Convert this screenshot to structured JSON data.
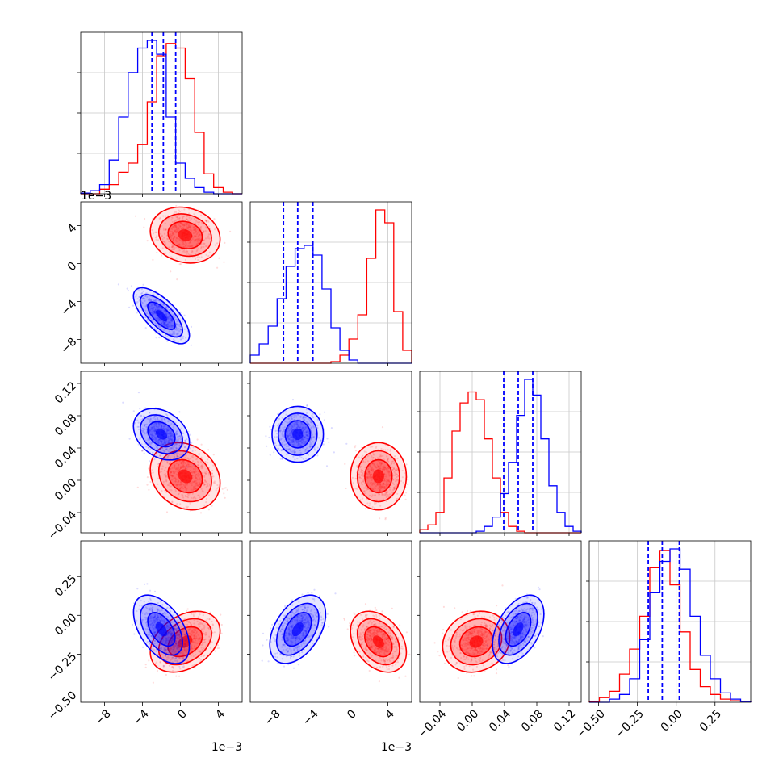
{
  "chart_data": {
    "type": "corner",
    "grid": true,
    "colors": {
      "red": "#ff0000",
      "blue": "#0000ff"
    },
    "variables": [
      {
        "range": [
          -0.0105,
          0.0065
        ],
        "ticks": [
          -0.008,
          -0.004,
          0.0,
          0.004
        ],
        "tick_labels": [
          "−8",
          "−4",
          "0",
          "4"
        ],
        "offset_label": "1e−3"
      },
      {
        "range": [
          -0.0105,
          0.0065
        ],
        "ticks": [
          -0.008,
          -0.004,
          0.0,
          0.004
        ],
        "tick_labels": [
          "−8",
          "−4",
          "0",
          "4"
        ],
        "offset_label": "1e−3"
      },
      {
        "range": [
          -0.065,
          0.135
        ],
        "ticks": [
          -0.04,
          0.0,
          0.04,
          0.08,
          0.12
        ],
        "tick_labels": [
          "−0.04",
          "0.00",
          "0.04",
          "0.08",
          "0.12"
        ],
        "offset_label": ""
      },
      {
        "range": [
          -0.56,
          0.48
        ],
        "ticks": [
          -0.5,
          -0.25,
          0.0,
          0.25
        ],
        "tick_labels": [
          "−0.50",
          "−0.25",
          "0.00",
          "0.25"
        ],
        "offset_label": ""
      }
    ],
    "series": [
      {
        "color": "red",
        "mean": [
          0.0005,
          0.003,
          0.005,
          -0.17
        ],
        "std": [
          0.0015,
          0.0012,
          0.017,
          0.08
        ],
        "corr": [
          [
            0,
            1,
            -0.15
          ],
          [
            0,
            2,
            -0.2
          ],
          [
            0,
            3,
            0.35
          ],
          [
            1,
            3,
            -0.35
          ],
          [
            2,
            3,
            0.15
          ]
        ]
      },
      {
        "color": "blue",
        "mean": [
          -0.002,
          -0.0055,
          0.057,
          -0.09
        ],
        "std": [
          0.0012,
          0.0012,
          0.013,
          0.09
        ],
        "corr": [
          [
            0,
            1,
            -0.7
          ],
          [
            0,
            2,
            -0.3
          ],
          [
            0,
            3,
            -0.5
          ],
          [
            1,
            3,
            0.45
          ],
          [
            2,
            3,
            0.45
          ]
        ]
      }
    ],
    "quantile_lines": {
      "color": "blue",
      "values": [
        [
          -0.003,
          -0.0018,
          -0.0005
        ],
        [
          -0.007,
          -0.0055,
          -0.0039
        ],
        [
          0.039,
          0.057,
          0.075
        ],
        [
          -0.18,
          -0.09,
          0.02
        ]
      ]
    },
    "diagonal_hist": [
      {
        "bins": [
          -0.0105,
          0.0065
        ],
        "red": [
          0,
          0,
          0.3,
          0.6,
          1.4,
          2.0,
          3.2,
          6.0,
          9.0,
          9.8,
          9.5,
          7.5,
          4.0,
          1.3,
          0.4,
          0.1,
          0
        ],
        "blue": [
          0.05,
          0.2,
          0.6,
          2.2,
          5.0,
          7.9,
          9.5,
          10.0,
          9.1,
          5.0,
          2.0,
          1.0,
          0.4,
          0.1,
          0,
          0,
          0
        ]
      },
      {
        "bins": [
          -0.0105,
          0.0065
        ],
        "red": [
          0,
          0,
          0,
          0,
          0,
          0,
          0,
          0,
          0,
          0.1,
          0.5,
          1.5,
          3.0,
          6.5,
          9.5,
          8.7,
          3.2,
          0.8
        ],
        "blue": [
          0.5,
          1.2,
          2.3,
          4.0,
          6.0,
          7.1,
          7.3,
          6.7,
          4.6,
          2.2,
          0.8,
          0.2,
          0,
          0,
          0,
          0,
          0,
          0
        ]
      },
      {
        "bins": [
          -0.065,
          0.135
        ],
        "red": [
          0.2,
          0.5,
          1.3,
          3.5,
          6.5,
          8.3,
          9.0,
          8.5,
          6.0,
          3.5,
          1.3,
          0.4,
          0.1,
          0,
          0,
          0,
          0,
          0,
          0,
          0
        ],
        "blue": [
          0,
          0,
          0,
          0,
          0,
          0,
          0,
          0.1,
          0.4,
          1.0,
          2.5,
          4.5,
          7.5,
          9.8,
          8.8,
          6.0,
          3.0,
          1.3,
          0.4,
          0.1
        ]
      },
      {
        "bins": [
          -0.56,
          0.48
        ],
        "red": [
          0.05,
          0.3,
          0.7,
          1.8,
          3.4,
          5.5,
          8.6,
          9.7,
          7.5,
          4.5,
          2.1,
          1.0,
          0.5,
          0.2,
          0.1,
          0.05
        ],
        "blue": [
          0,
          0,
          0.2,
          0.5,
          1.5,
          4.0,
          7.0,
          9.0,
          9.8,
          8.5,
          5.5,
          3.0,
          1.5,
          0.6,
          0.2,
          0.05
        ]
      }
    ]
  }
}
